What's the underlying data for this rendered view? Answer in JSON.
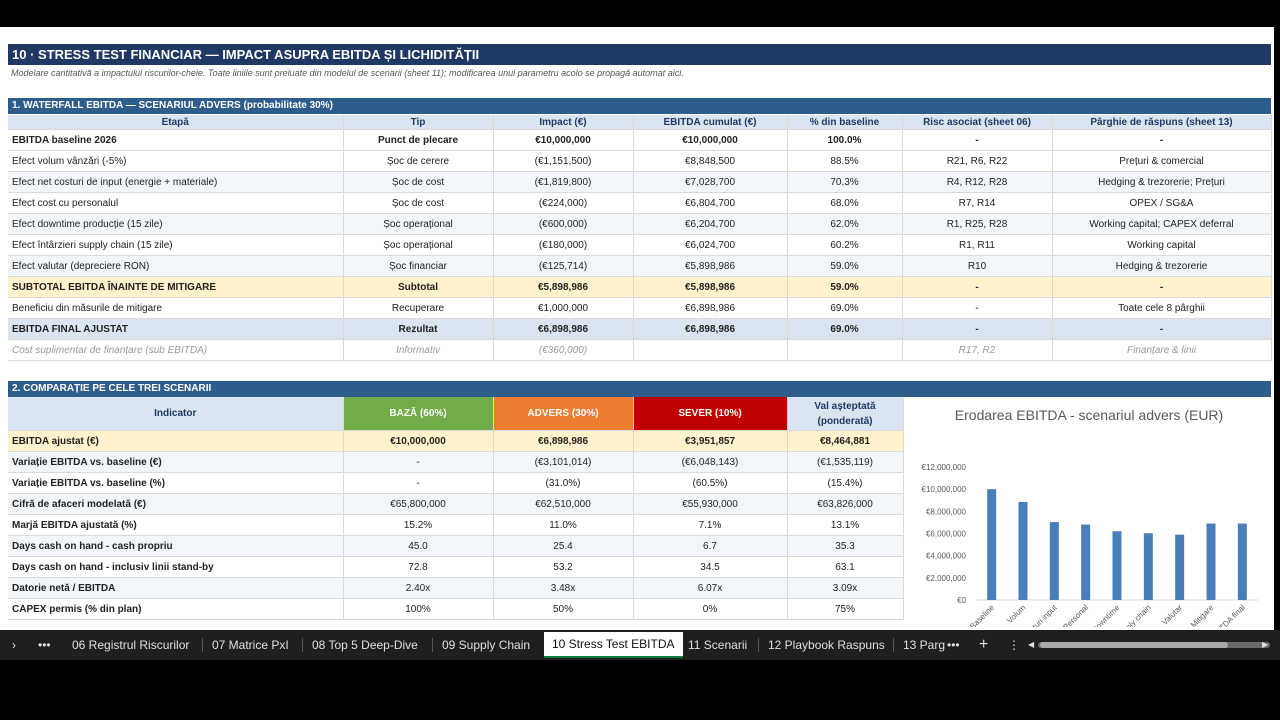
{
  "title": "10 · STRESS TEST FINANCIAR — IMPACT ASUPRA EBITDA ȘI LICHIDITĂȚII",
  "subtitle": "Modelare cantitativă a impactului riscurilor-cheie. Toate liniile sunt preluate din modelul de scenarii (sheet 11); modificarea unui parametru acolo se propagă automat aici.",
  "waterfall": {
    "section_title": "1. WATERFALL EBITDA — SCENARIUL ADVERS (probabilitate 30%)",
    "headers": [
      "Etapă",
      "Tip",
      "Impact (€)",
      "EBITDA cumulat (€)",
      "% din baseline",
      "Risc asociat (sheet 06)",
      "Pârghie de răspuns (sheet 13)"
    ],
    "rows": [
      [
        "EBITDA baseline 2026",
        "Punct de plecare",
        "€10,000,000",
        "€10,000,000",
        "100.0%",
        "-",
        "-"
      ],
      [
        "Efect volum vânzări (-5%)",
        "Șoc de cerere",
        "(€1,151,500)",
        "€8,848,500",
        "88.5%",
        "R21, R6, R22",
        "Prețuri & comercial"
      ],
      [
        "Efect net costuri de input (energie + materiale)",
        "Șoc de cost",
        "(€1,819,800)",
        "€7,028,700",
        "70.3%",
        "R4, R12, R28",
        "Hedging & trezorerie; Prețuri"
      ],
      [
        "Efect cost cu personalul",
        "Șoc de cost",
        "(€224,000)",
        "€6,804,700",
        "68.0%",
        "R7, R14",
        "OPEX / SG&A"
      ],
      [
        "Efect downtime producție (15 zile)",
        "Șoc operațional",
        "(€600,000)",
        "€6,204,700",
        "62.0%",
        "R1, R25, R28",
        "Working capital; CAPEX deferral"
      ],
      [
        "Efect întârzieri supply chain (15 zile)",
        "Șoc operațional",
        "(€180,000)",
        "€6,024,700",
        "60.2%",
        "R1, R11",
        "Working capital"
      ],
      [
        "Efect valutar (depreciere RON)",
        "Șoc financiar",
        "(€125,714)",
        "€5,898,986",
        "59.0%",
        "R10",
        "Hedging & trezorerie"
      ],
      [
        "SUBTOTAL EBITDA ÎNAINTE DE MITIGARE",
        "Subtotal",
        "€5,898,986",
        "€5,898,986",
        "59.0%",
        "-",
        "-"
      ],
      [
        "Beneficiu din măsurile de mitigare",
        "Recuperare",
        "€1,000,000",
        "€6,898,986",
        "69.0%",
        "-",
        "Toate cele 8 pârghii"
      ],
      [
        "EBITDA FINAL AJUSTAT",
        "Rezultat",
        "€6,898,986",
        "€6,898,986",
        "69.0%",
        "-",
        "-"
      ],
      [
        "Cost suplimentar de finanțare (sub EBITDA)",
        "Informativ",
        "(€360,000)",
        "",
        "",
        "R17, R2",
        "Finanțare & linii"
      ]
    ]
  },
  "comparison": {
    "section_title": "2. COMPARAȚIE PE CELE TREI SCENARII",
    "headers": [
      "Indicator",
      "BAZĂ (60%)",
      "ADVERS (30%)",
      "SEVER (10%)",
      "Val așteptată (ponderată)"
    ],
    "rows": [
      [
        "EBITDA ajustat (€)",
        "€10,000,000",
        "€6,898,986",
        "€3,951,857",
        "€8,464,881"
      ],
      [
        "Variație EBITDA vs. baseline (€)",
        "-",
        "(€3,101,014)",
        "(€6,048,143)",
        "(€1,535,119)"
      ],
      [
        "Variație EBITDA vs. baseline (%)",
        "-",
        "(31.0%)",
        "(60.5%)",
        "(15.4%)"
      ],
      [
        "Cifră de afaceri modelată (€)",
        "€65,800,000",
        "€62,510,000",
        "€55,930,000",
        "€63,826,000"
      ],
      [
        "Marjă EBITDA ajustată (%)",
        "15.2%",
        "11.0%",
        "7.1%",
        "13.1%"
      ],
      [
        "Days cash on hand - cash propriu",
        "45.0",
        "25.4",
        "6.7",
        "35.3"
      ],
      [
        "Days cash on hand - inclusiv linii stand-by",
        "72.8",
        "53.2",
        "34.5",
        "63.1"
      ],
      [
        "Datorie netă / EBITDA",
        "2.40x",
        "3.48x",
        "6.07x",
        "3.09x"
      ],
      [
        "CAPEX permis (% din plan)",
        "100%",
        "50%",
        "0%",
        "75%"
      ]
    ]
  },
  "chart_data": {
    "type": "bar",
    "title": "Erodarea EBITDA - scenariul advers (EUR)",
    "categories": [
      "Baseline",
      "Volum",
      "Costuri input",
      "Personal",
      "Downtime",
      "Supply chain",
      "Valutar",
      "Mitigare",
      "EBITDA final"
    ],
    "values": [
      10000000,
      8848500,
      7028700,
      6804700,
      6204700,
      6024700,
      5898986,
      6898986,
      6898986
    ],
    "ylim": [
      0,
      12000000
    ],
    "yticks": [
      "€12,000,000",
      "€10,000,000",
      "€8,000,000",
      "€6,000,000",
      "€4,000,000",
      "€2,000,000",
      "€0"
    ],
    "bar_color": "#4a7ebb",
    "grid": false
  },
  "tabs": {
    "nav_next": "›",
    "more": "•••",
    "items": [
      "06 Registrul Riscurilor",
      "07 Matrice PxI",
      "08 Top 5 Deep-Dive",
      "09 Supply Chain",
      "10 Stress Test EBITDA",
      "11 Scenarii",
      "12 Playbook Raspuns",
      "13 Parg"
    ],
    "more2": "•••",
    "add": "+",
    "menu": "⋮",
    "scroll_left": "◀",
    "scroll_right": "▶"
  }
}
